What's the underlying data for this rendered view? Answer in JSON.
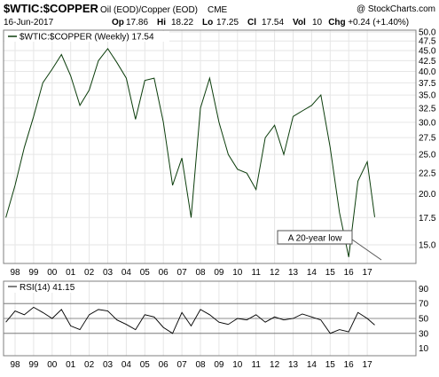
{
  "header": {
    "symbol": "$WTIC:$COPPER",
    "description": "Oil (EOD)/Copper (EOD)",
    "exchange": "CME",
    "copyright": "@ StockCharts.com",
    "date": "16-Jun-2017",
    "quote": [
      {
        "label": "Op",
        "value": "17.86"
      },
      {
        "label": "Hi",
        "value": "18.22"
      },
      {
        "label": "Lo",
        "value": "17.25"
      },
      {
        "label": "Cl",
        "value": "17.54"
      },
      {
        "label": "Vol",
        "value": "10"
      },
      {
        "label": "Chg",
        "value": "+0.24 (+1.40%)"
      }
    ]
  },
  "colors": {
    "price_line": "#0b3d0b",
    "rsi_line": "#000000",
    "grid": "#e6e6e6",
    "border": "#7f7f7f"
  },
  "chart_data": [
    {
      "type": "line",
      "legend": "$WTIC:$COPPER (Weekly) 17.54",
      "x_tick_labels": [
        "98",
        "99",
        "00",
        "01",
        "02",
        "03",
        "04",
        "05",
        "06",
        "07",
        "08",
        "09",
        "10",
        "11",
        "12",
        "13",
        "14",
        "15",
        "16",
        "17"
      ],
      "y_tick_labels": [
        "15.0",
        "17.5",
        "20.0",
        "22.5",
        "25.0",
        "27.5",
        "30.0",
        "32.5",
        "35.0",
        "37.5",
        "40.0",
        "42.5",
        "45.0",
        "47.5",
        "50.0"
      ],
      "y_log_scale": true,
      "grid": true,
      "annotation": "A 20-year low",
      "x": [
        1997.5,
        1998.0,
        1998.5,
        1999.0,
        1999.5,
        2000.0,
        2000.5,
        2001.0,
        2001.5,
        2002.0,
        2002.5,
        2003.0,
        2003.5,
        2004.0,
        2004.5,
        2005.0,
        2005.5,
        2006.0,
        2006.5,
        2007.0,
        2007.5,
        2008.0,
        2008.5,
        2009.0,
        2009.5,
        2010.0,
        2010.5,
        2011.0,
        2011.5,
        2012.0,
        2012.5,
        2013.0,
        2013.5,
        2014.0,
        2014.5,
        2015.0,
        2015.5,
        2016.0,
        2016.5,
        2017.0,
        2017.4
      ],
      "values": [
        17.5,
        21.0,
        26.0,
        31.0,
        37.5,
        40.5,
        44.0,
        39.0,
        33.0,
        36.0,
        42.5,
        45.5,
        42.0,
        38.5,
        30.5,
        38.0,
        38.5,
        30.0,
        21.0,
        24.5,
        17.5,
        32.5,
        38.5,
        30.0,
        25.0,
        23.0,
        22.5,
        20.5,
        27.5,
        29.5,
        25.0,
        31.0,
        32.0,
        33.0,
        35.0,
        26.0,
        18.0,
        14.0,
        21.5,
        24.0,
        17.54
      ]
    },
    {
      "type": "line",
      "legend": "RSI(14) 41.15",
      "x_tick_labels": [
        "98",
        "99",
        "00",
        "01",
        "02",
        "03",
        "04",
        "05",
        "06",
        "07",
        "08",
        "09",
        "10",
        "11",
        "12",
        "13",
        "14",
        "15",
        "16",
        "17"
      ],
      "y_tick_labels": [
        "10",
        "30",
        "50",
        "70",
        "90"
      ],
      "ylim": [
        0,
        100
      ],
      "reference_lines": [
        30,
        50,
        70
      ],
      "x": [
        1997.5,
        1998.0,
        1998.5,
        1999.0,
        1999.5,
        2000.0,
        2000.5,
        2001.0,
        2001.5,
        2002.0,
        2002.5,
        2003.0,
        2003.5,
        2004.0,
        2004.5,
        2005.0,
        2005.5,
        2006.0,
        2006.5,
        2007.0,
        2007.5,
        2008.0,
        2008.5,
        2009.0,
        2009.5,
        2010.0,
        2010.5,
        2011.0,
        2011.5,
        2012.0,
        2012.5,
        2013.0,
        2013.5,
        2014.0,
        2014.5,
        2015.0,
        2015.5,
        2016.0,
        2016.5,
        2017.0,
        2017.4
      ],
      "values": [
        45,
        60,
        55,
        65,
        58,
        50,
        62,
        40,
        35,
        55,
        62,
        60,
        48,
        42,
        35,
        55,
        52,
        38,
        30,
        58,
        40,
        62,
        55,
        45,
        42,
        50,
        48,
        55,
        45,
        52,
        48,
        50,
        56,
        52,
        48,
        30,
        35,
        32,
        58,
        50,
        41.15
      ]
    }
  ]
}
